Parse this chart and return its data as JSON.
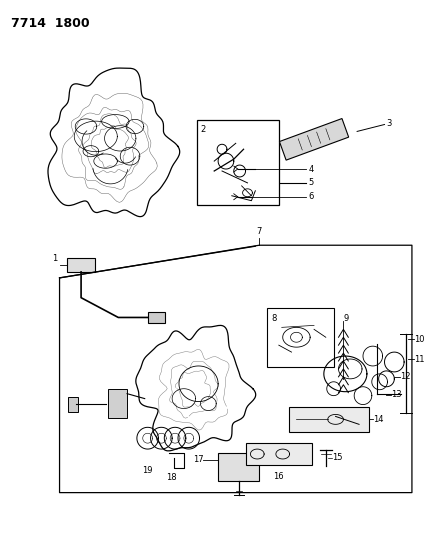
{
  "title": "7714  1800",
  "title_fontsize": 9,
  "bg_color": "#ffffff",
  "line_color": "#000000",
  "fig_width": 4.29,
  "fig_height": 5.33,
  "dpi": 100
}
